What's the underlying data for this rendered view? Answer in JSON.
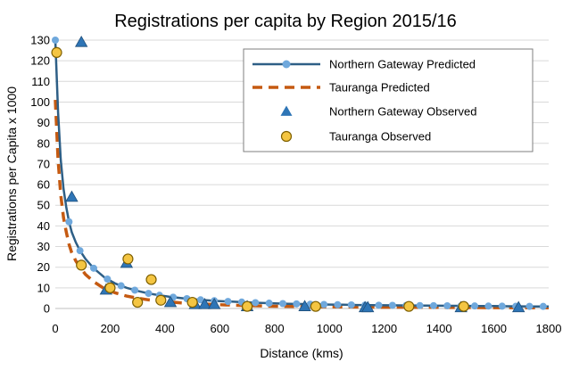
{
  "chart_data": {
    "type": "line",
    "title": "Registrations per capita by Region 2015/16",
    "xlabel": "Distance (kms)",
    "ylabel": "Registrations per Capita x 1000",
    "xlim": [
      0,
      1800
    ],
    "ylim": [
      0,
      130
    ],
    "x_ticks": [
      0,
      200,
      400,
      600,
      800,
      1000,
      1200,
      1400,
      1600,
      1800
    ],
    "y_ticks": [
      0,
      10,
      20,
      30,
      40,
      50,
      60,
      70,
      80,
      90,
      100,
      110,
      120,
      130
    ],
    "grid": "horizontal",
    "legend_position": "top-right",
    "series": [
      {
        "name": "Northern Gateway Predicted",
        "kind": "line-with-markers",
        "color": "#2e5f86",
        "marker_color": "#6fa8dc",
        "x": [
          0,
          10,
          20,
          30,
          40,
          50,
          60,
          75,
          90,
          110,
          140,
          180,
          220,
          260,
          300,
          340,
          380,
          420,
          460,
          500,
          550,
          600,
          650,
          700,
          750,
          800,
          850,
          900,
          950,
          1000,
          1050,
          1100,
          1150,
          1200,
          1250,
          1300,
          1350,
          1400,
          1450,
          1500,
          1550,
          1600,
          1650,
          1700,
          1750,
          1800
        ],
        "y": [
          130,
          95,
          72,
          58,
          49,
          42,
          37,
          32,
          28,
          24,
          19.5,
          15,
          12,
          10,
          8.5,
          7.3,
          6.4,
          5.6,
          5.0,
          4.5,
          4.0,
          3.6,
          3.3,
          3.0,
          2.7,
          2.5,
          2.3,
          2.15,
          2.0,
          1.9,
          1.8,
          1.7,
          1.6,
          1.55,
          1.5,
          1.45,
          1.4,
          1.35,
          1.3,
          1.25,
          1.2,
          1.15,
          1.1,
          1.05,
          1.0,
          1.0
        ],
        "marker_x": [
          0,
          50,
          90,
          140,
          190,
          240,
          290,
          340,
          380,
          430,
          480,
          530,
          580,
          630,
          680,
          730,
          780,
          830,
          880,
          930,
          980,
          1030,
          1080,
          1130,
          1180,
          1230,
          1280,
          1330,
          1380,
          1430,
          1480,
          1530,
          1580,
          1630,
          1680,
          1730,
          1780
        ]
      },
      {
        "name": "Tauranga Predicted",
        "kind": "dashed-line",
        "color": "#c55a11",
        "x": [
          0,
          10,
          20,
          30,
          40,
          50,
          60,
          75,
          90,
          110,
          140,
          180,
          220,
          260,
          300,
          340,
          380,
          420,
          460,
          500,
          550,
          600,
          650,
          700,
          800,
          900,
          1000,
          1100,
          1200,
          1300,
          1400,
          1500,
          1600,
          1700,
          1800
        ],
        "y": [
          101,
          72,
          55,
          44,
          37,
          31,
          27,
          23,
          20,
          16.5,
          13,
          9.5,
          7.5,
          6.0,
          5.0,
          4.2,
          3.6,
          3.1,
          2.7,
          2.4,
          2.1,
          1.8,
          1.6,
          1.4,
          1.1,
          0.9,
          0.8,
          0.7,
          0.6,
          0.55,
          0.5,
          0.45,
          0.4,
          0.35,
          0.3
        ]
      },
      {
        "name": "Northern Gateway Observed",
        "kind": "scatter-triangle",
        "color": "#2e75b6",
        "x": [
          95,
          60,
          185,
          260,
          420,
          510,
          545,
          580,
          700,
          910,
          1130,
          1140,
          1480,
          1690
        ],
        "y": [
          129,
          54,
          9,
          22,
          3,
          2,
          2,
          2,
          1,
          1,
          0.5,
          0.5,
          0.5,
          0.5
        ]
      },
      {
        "name": "Tauranga Observed",
        "kind": "scatter-circle",
        "color": "#f4c542",
        "x": [
          5,
          95,
          200,
          265,
          300,
          350,
          385,
          500,
          700,
          950,
          1290,
          1490
        ],
        "y": [
          124,
          21,
          10,
          24,
          3,
          14,
          4,
          3,
          1,
          1,
          1,
          1
        ]
      }
    ]
  }
}
